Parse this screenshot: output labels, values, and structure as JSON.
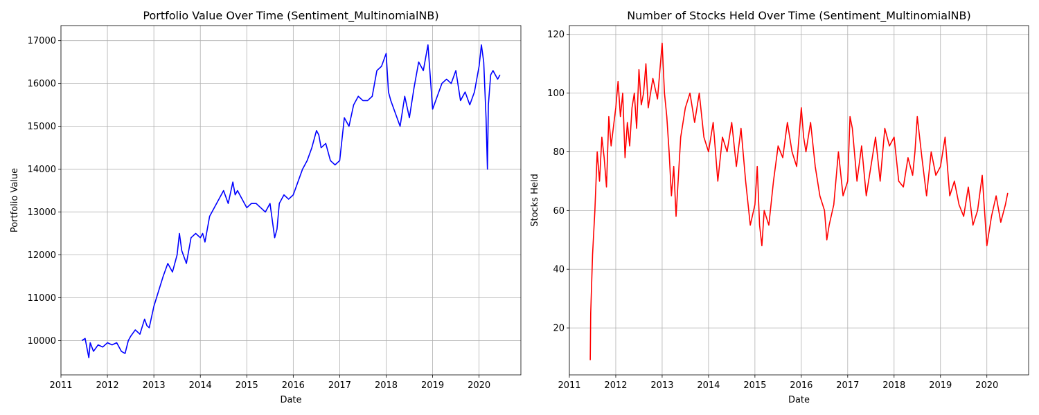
{
  "chart_data": [
    {
      "type": "line",
      "title": "Portfolio Value Over Time (Sentiment_MultinomialNB)",
      "xlabel": "Date",
      "ylabel": "Portfolio Value",
      "grid": true,
      "color": "#0000ff",
      "xlim": [
        2011.0,
        2020.9
      ],
      "ylim": [
        9200,
        17350
      ],
      "x_ticks": [
        2011,
        2012,
        2013,
        2014,
        2015,
        2016,
        2017,
        2018,
        2019,
        2020
      ],
      "x_tick_labels": [
        "2011",
        "2012",
        "2013",
        "2014",
        "2015",
        "2016",
        "2017",
        "2018",
        "2019",
        "2020"
      ],
      "y_ticks": [
        10000,
        11000,
        12000,
        13000,
        14000,
        15000,
        16000,
        17000
      ],
      "y_tick_labels": [
        "10000",
        "11000",
        "12000",
        "13000",
        "14000",
        "15000",
        "16000",
        "17000"
      ],
      "series": [
        {
          "x": [
            2011.45,
            2011.52,
            2011.6,
            2011.63,
            2011.7,
            2011.8,
            2011.9,
            2012.0,
            2012.1,
            2012.2,
            2012.3,
            2012.38,
            2012.45,
            2012.5,
            2012.6,
            2012.7,
            2012.8,
            2012.85,
            2012.9,
            2013.0,
            2013.1,
            2013.2,
            2013.3,
            2013.4,
            2013.5,
            2013.55,
            2013.6,
            2013.7,
            2013.8,
            2013.9,
            2014.0,
            2014.05,
            2014.1,
            2014.2,
            2014.3,
            2014.4,
            2014.5,
            2014.6,
            2014.7,
            2014.75,
            2014.8,
            2014.9,
            2015.0,
            2015.1,
            2015.2,
            2015.3,
            2015.4,
            2015.5,
            2015.6,
            2015.65,
            2015.7,
            2015.8,
            2015.9,
            2016.0,
            2016.1,
            2016.2,
            2016.3,
            2016.4,
            2016.5,
            2016.55,
            2016.6,
            2016.7,
            2016.8,
            2016.9,
            2017.0,
            2017.1,
            2017.2,
            2017.3,
            2017.4,
            2017.5,
            2017.6,
            2017.7,
            2017.8,
            2017.9,
            2018.0,
            2018.05,
            2018.1,
            2018.2,
            2018.3,
            2018.4,
            2018.5,
            2018.6,
            2018.7,
            2018.8,
            2018.9,
            2019.0,
            2019.1,
            2019.2,
            2019.3,
            2019.4,
            2019.5,
            2019.6,
            2019.7,
            2019.8,
            2019.9,
            2020.0,
            2020.05,
            2020.1,
            2020.15,
            2020.18,
            2020.2,
            2020.25,
            2020.3,
            2020.4,
            2020.45
          ],
          "y": [
            10000,
            10050,
            9600,
            9950,
            9750,
            9900,
            9850,
            9950,
            9900,
            9950,
            9750,
            9700,
            10000,
            10100,
            10250,
            10150,
            10500,
            10350,
            10300,
            10800,
            11150,
            11500,
            11800,
            11600,
            12000,
            12500,
            12100,
            11800,
            12400,
            12500,
            12400,
            12500,
            12300,
            12900,
            13100,
            13300,
            13500,
            13200,
            13700,
            13400,
            13500,
            13300,
            13100,
            13200,
            13200,
            13100,
            13000,
            13200,
            12400,
            12600,
            13200,
            13400,
            13300,
            13400,
            13700,
            14000,
            14200,
            14500,
            14900,
            14800,
            14500,
            14600,
            14200,
            14100,
            14200,
            15200,
            15000,
            15500,
            15700,
            15600,
            15600,
            15700,
            16300,
            16400,
            16700,
            15800,
            15600,
            15300,
            15000,
            15700,
            15200,
            15900,
            16500,
            16300,
            16900,
            15400,
            15700,
            16000,
            16100,
            16000,
            16300,
            15600,
            15800,
            15500,
            15800,
            16400,
            16900,
            16500,
            15200,
            14000,
            15500,
            16200,
            16300,
            16100,
            16200
          ]
        }
      ]
    },
    {
      "type": "line",
      "title": "Number of Stocks Held Over Time (Sentiment_MultinomialNB)",
      "xlabel": "Date",
      "ylabel": "Stocks Held",
      "grid": true,
      "color": "#ff0000",
      "xlim": [
        2011.0,
        2020.9
      ],
      "ylim": [
        4,
        123
      ],
      "x_ticks": [
        2011,
        2012,
        2013,
        2014,
        2015,
        2016,
        2017,
        2018,
        2019,
        2020
      ],
      "x_tick_labels": [
        "2011",
        "2012",
        "2013",
        "2014",
        "2015",
        "2016",
        "2017",
        "2018",
        "2019",
        "2020"
      ],
      "y_ticks": [
        20,
        40,
        60,
        80,
        100,
        120
      ],
      "y_tick_labels": [
        "20",
        "40",
        "60",
        "80",
        "100",
        "120"
      ],
      "series": [
        {
          "x": [
            2011.45,
            2011.46,
            2011.5,
            2011.55,
            2011.6,
            2011.65,
            2011.7,
            2011.75,
            2011.8,
            2011.85,
            2011.9,
            2012.0,
            2012.05,
            2012.1,
            2012.15,
            2012.2,
            2012.25,
            2012.3,
            2012.35,
            2012.4,
            2012.45,
            2012.5,
            2012.55,
            2012.6,
            2012.65,
            2012.7,
            2012.8,
            2012.9,
            2013.0,
            2013.05,
            2013.1,
            2013.15,
            2013.2,
            2013.25,
            2013.3,
            2013.4,
            2013.5,
            2013.6,
            2013.7,
            2013.8,
            2013.9,
            2014.0,
            2014.1,
            2014.2,
            2014.3,
            2014.4,
            2014.5,
            2014.6,
            2014.7,
            2014.8,
            2014.9,
            2015.0,
            2015.05,
            2015.1,
            2015.15,
            2015.2,
            2015.3,
            2015.4,
            2015.5,
            2015.6,
            2015.7,
            2015.8,
            2015.9,
            2016.0,
            2016.05,
            2016.1,
            2016.2,
            2016.3,
            2016.4,
            2016.5,
            2016.55,
            2016.6,
            2016.7,
            2016.8,
            2016.9,
            2017.0,
            2017.05,
            2017.1,
            2017.2,
            2017.3,
            2017.4,
            2017.5,
            2017.6,
            2017.7,
            2017.8,
            2017.9,
            2018.0,
            2018.1,
            2018.2,
            2018.3,
            2018.4,
            2018.45,
            2018.5,
            2018.6,
            2018.7,
            2018.8,
            2018.9,
            2019.0,
            2019.1,
            2019.2,
            2019.3,
            2019.4,
            2019.5,
            2019.6,
            2019.7,
            2019.8,
            2019.9,
            2020.0,
            2020.1,
            2020.2,
            2020.3,
            2020.4,
            2020.45
          ],
          "y": [
            9,
            25,
            45,
            60,
            80,
            70,
            85,
            78,
            68,
            92,
            82,
            95,
            104,
            92,
            100,
            78,
            90,
            82,
            95,
            100,
            88,
            108,
            96,
            100,
            110,
            95,
            105,
            98,
            117,
            100,
            92,
            80,
            65,
            75,
            58,
            85,
            95,
            100,
            90,
            100,
            85,
            80,
            90,
            70,
            85,
            80,
            90,
            75,
            88,
            70,
            55,
            62,
            75,
            55,
            48,
            60,
            55,
            70,
            82,
            78,
            90,
            80,
            75,
            95,
            85,
            80,
            90,
            75,
            65,
            60,
            50,
            55,
            62,
            80,
            65,
            70,
            92,
            88,
            70,
            82,
            65,
            75,
            85,
            70,
            88,
            82,
            85,
            70,
            68,
            78,
            72,
            80,
            92,
            78,
            65,
            80,
            72,
            75,
            85,
            65,
            70,
            62,
            58,
            68,
            55,
            60,
            72,
            48,
            58,
            65,
            56,
            62,
            66
          ]
        }
      ]
    }
  ]
}
